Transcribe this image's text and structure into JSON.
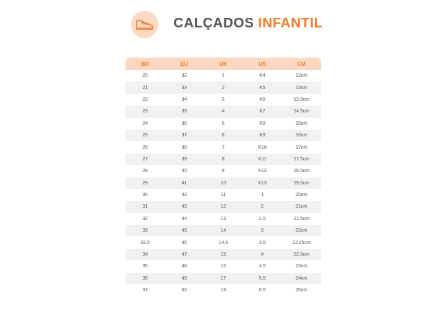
{
  "header": {
    "icon": "shoe-icon",
    "badge_color": "#fcd9c3",
    "title_part1": "CALÇADOS",
    "title_part2": "INFANTIL",
    "title_color": "#555555",
    "accent_color": "#ef7d2c"
  },
  "table": {
    "columns": [
      "BR",
      "EU",
      "UK",
      "US",
      "CM"
    ],
    "rows": [
      [
        "20",
        "32",
        "1",
        "K4",
        "12cm"
      ],
      [
        "21",
        "33",
        "2",
        "K5",
        "13cm"
      ],
      [
        "22",
        "34",
        "3",
        "K6",
        "13.5cm"
      ],
      [
        "23",
        "35",
        "4",
        "K7",
        "14.5cm"
      ],
      [
        "24",
        "36",
        "5",
        "K8",
        "15cm"
      ],
      [
        "25",
        "37",
        "6",
        "K9",
        "16cm"
      ],
      [
        "26",
        "38",
        "7",
        "K10",
        "17cm"
      ],
      [
        "27",
        "39",
        "8",
        "K11",
        "17.5cm"
      ],
      [
        "28",
        "40",
        "9",
        "K12",
        "18.5cm"
      ],
      [
        "29",
        "41",
        "10",
        "K13",
        "19.5cm"
      ],
      [
        "30",
        "42",
        "11",
        "1",
        "20cm"
      ],
      [
        "31",
        "43",
        "12",
        "2",
        "21cm"
      ],
      [
        "32",
        "44",
        "13",
        "2.5",
        "21.5cm"
      ],
      [
        "33",
        "45",
        "14",
        "3",
        "22cm"
      ],
      [
        "33.5",
        "46",
        "14.5",
        "3.5",
        "22.25cm"
      ],
      [
        "34",
        "47",
        "15",
        "4",
        "22.5cm"
      ],
      [
        "35",
        "48",
        "16",
        "4.5",
        "23cm"
      ],
      [
        "36",
        "49",
        "17",
        "5.5",
        "24cm"
      ],
      [
        "37",
        "50",
        "18",
        "6.5",
        "25cm"
      ]
    ]
  }
}
